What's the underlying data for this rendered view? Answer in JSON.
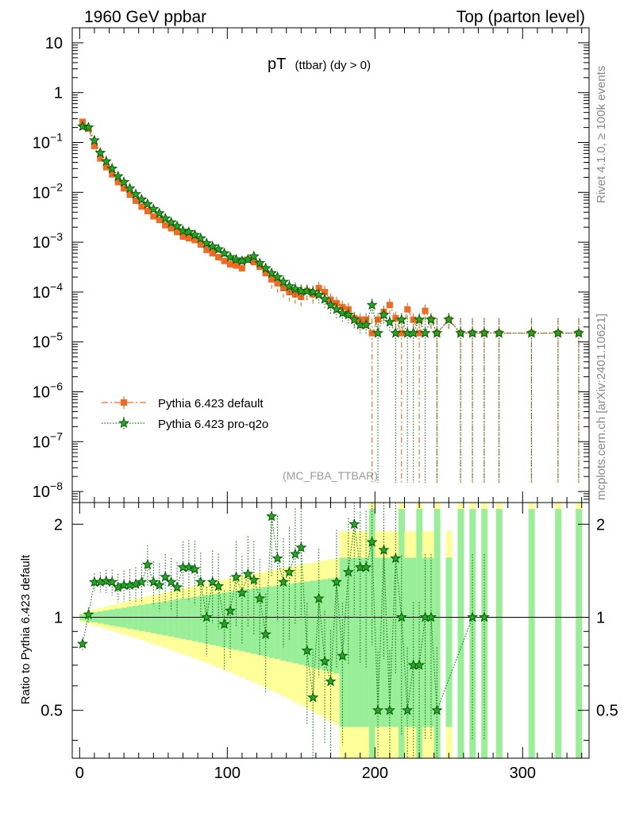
{
  "header": {
    "left": "1960 GeV ppbar",
    "right": "Top (parton level)"
  },
  "side_labels": {
    "rivet": "Rivet 4.1.0, ≥ 100k events",
    "mcplots": "mcplots.cern.ch [arXiv:2401.10621]"
  },
  "colors": {
    "default_series": "#f26b21",
    "proq2o_series": "#117711",
    "band_outer": "#ffff99",
    "band_inner": "#99ee99"
  },
  "chart_data": [
    {
      "type": "scatter",
      "panel": "main",
      "title_main": "pT",
      "title_sub": "(ttbar) (dy > 0)",
      "watermark": "(MC_FBA_TTBAR)",
      "yscale": "log",
      "xlim": [
        -5,
        345
      ],
      "ylim": [
        6e-09,
        20
      ],
      "y_ticks": [
        {
          "value": 10,
          "label": "10"
        },
        {
          "value": 1,
          "label": "1"
        },
        {
          "value": 0.1,
          "base": "10",
          "exp": "−1"
        },
        {
          "value": 0.01,
          "base": "10",
          "exp": "−2"
        },
        {
          "value": 0.001,
          "base": "10",
          "exp": "−3"
        },
        {
          "value": 0.0001,
          "base": "10",
          "exp": "−4"
        },
        {
          "value": 1e-05,
          "base": "10",
          "exp": "−5"
        },
        {
          "value": 1e-06,
          "base": "10",
          "exp": "−6"
        },
        {
          "value": 1e-07,
          "base": "10",
          "exp": "−7"
        },
        {
          "value": 1e-08,
          "base": "10",
          "exp": "−8"
        }
      ],
      "legend_position": "bottom-left",
      "series": [
        {
          "name": "Pythia 6.423 default",
          "marker": "square",
          "x": [
            2,
            6,
            10,
            14,
            18,
            22,
            26,
            30,
            34,
            38,
            42,
            46,
            50,
            54,
            58,
            62,
            66,
            70,
            74,
            78,
            82,
            86,
            90,
            94,
            98,
            102,
            106,
            110,
            114,
            118,
            122,
            126,
            130,
            134,
            138,
            142,
            146,
            150,
            154,
            158,
            162,
            166,
            170,
            174,
            178,
            182,
            186,
            190,
            194,
            198,
            202,
            206,
            210,
            214,
            218,
            222,
            226,
            230,
            234,
            238,
            242,
            250,
            258,
            266,
            274,
            284,
            306,
            324,
            338
          ],
          "y": [
            0.26,
            0.19,
            0.085,
            0.048,
            0.032,
            0.023,
            0.016,
            0.012,
            0.009,
            0.0068,
            0.0052,
            0.0042,
            0.0033,
            0.0028,
            0.0022,
            0.0019,
            0.0016,
            0.0013,
            0.0012,
            0.0011,
            0.0009,
            0.0007,
            0.0006,
            0.0005,
            0.00042,
            0.00036,
            0.00034,
            0.0003,
            0.00045,
            0.0004,
            0.00032,
            0.00024,
            0.00018,
            0.00015,
            0.00012,
            0.0001,
            9e-05,
            8e-05,
            0.000105,
            9e-05,
            0.00012,
            0.0001,
            7e-05,
            6e-05,
            5e-05,
            4.5e-05,
            3e-05,
            2.8e-05,
            2.8e-05,
            1.5e-05,
            2.8e-05,
            4e-05,
            5.5e-05,
            3e-05,
            1.5e-05,
            4.5e-05,
            2.8e-05,
            1.5e-05,
            4.2e-05,
            2.8e-05,
            1.5e-05,
            2.8e-05,
            1.5e-05,
            1.5e-05,
            1.5e-05,
            1.5e-05,
            1.5e-05,
            1.5e-05,
            1.5e-05
          ]
        },
        {
          "name": "Pythia 6.423 pro-q2o",
          "marker": "star",
          "x": [
            2,
            6,
            10,
            14,
            18,
            22,
            26,
            30,
            34,
            38,
            42,
            46,
            50,
            54,
            58,
            62,
            66,
            70,
            74,
            78,
            82,
            86,
            90,
            94,
            98,
            102,
            106,
            110,
            114,
            118,
            122,
            126,
            130,
            134,
            138,
            142,
            146,
            150,
            154,
            158,
            162,
            166,
            170,
            174,
            178,
            182,
            186,
            190,
            194,
            198,
            202,
            206,
            210,
            214,
            218,
            222,
            226,
            230,
            234,
            238,
            242,
            250,
            258,
            266,
            274,
            284,
            306,
            324,
            338
          ],
          "y": [
            0.21,
            0.2,
            0.11,
            0.062,
            0.042,
            0.03,
            0.021,
            0.016,
            0.012,
            0.0092,
            0.0072,
            0.0058,
            0.0046,
            0.0038,
            0.003,
            0.0025,
            0.0021,
            0.0017,
            0.0016,
            0.0014,
            0.0012,
            0.00095,
            0.00082,
            0.00072,
            0.0006,
            0.0005,
            0.00045,
            0.00042,
            0.00045,
            0.00052,
            0.00038,
            0.0003,
            0.00024,
            0.0002,
            0.00016,
            0.00013,
            0.000115,
            0.000105,
            0.000105,
            0.0001,
            8.8e-05,
            7.2e-05,
            5.5e-05,
            4.5e-05,
            3.8e-05,
            3.5e-05,
            2.8e-05,
            2.2e-05,
            2.2e-05,
            5.5e-05,
            1.5e-05,
            3.5e-05,
            2.5e-05,
            1.5e-05,
            2.8e-05,
            1.5e-05,
            1.5e-05,
            2.8e-05,
            1.5e-05,
            2.8e-05,
            1.5e-05,
            2.8e-05,
            1.5e-05,
            1.5e-05,
            1.5e-05,
            1.5e-05,
            1.5e-05,
            1.5e-05,
            1.5e-05
          ]
        }
      ]
    },
    {
      "type": "scatter",
      "panel": "ratio",
      "ylabel": "Ratio to Pythia 6.423 default",
      "xlim": [
        -5,
        345
      ],
      "ylim": [
        0.35,
        2.35
      ],
      "x_ticks": [
        0,
        100,
        200,
        300
      ],
      "y_ticks": [
        0.5,
        1,
        2
      ],
      "reference_line": 1,
      "series": [
        {
          "name": "Pythia 6.423 pro-q2o / Pythia 6.423 default",
          "x": [
            2,
            6,
            10,
            14,
            18,
            22,
            26,
            30,
            34,
            38,
            42,
            46,
            50,
            54,
            58,
            62,
            66,
            70,
            74,
            78,
            82,
            86,
            90,
            94,
            98,
            102,
            106,
            110,
            114,
            118,
            122,
            126,
            130,
            134,
            138,
            142,
            146,
            150,
            154,
            158,
            162,
            166,
            170,
            174,
            178,
            182,
            186,
            190,
            194,
            198,
            202,
            206,
            210,
            214,
            218,
            222,
            226,
            230,
            234,
            238,
            242,
            266,
            274
          ],
          "y": [
            0.82,
            1.02,
            1.3,
            1.3,
            1.31,
            1.3,
            1.25,
            1.27,
            1.27,
            1.28,
            1.3,
            1.48,
            1.3,
            1.27,
            1.35,
            1.3,
            1.25,
            1.45,
            1.45,
            1.43,
            1.3,
            1.0,
            1.3,
            1.26,
            0.95,
            1.05,
            1.35,
            1.2,
            1.38,
            1.32,
            1.15,
            0.88,
            2.12,
            1.55,
            1.3,
            1.4,
            1.6,
            1.68,
            0.78,
            0.55,
            1.15,
            0.72,
            0.62,
            1.3,
            0.75,
            1.4,
            2.0,
            1.45,
            1.45,
            1.75,
            0.5,
            1.65,
            0.5,
            1.55,
            1.0,
            0.5,
            0.7,
            0.7,
            1.0,
            1.0,
            0.5,
            1.0,
            1.0
          ]
        }
      ]
    }
  ]
}
